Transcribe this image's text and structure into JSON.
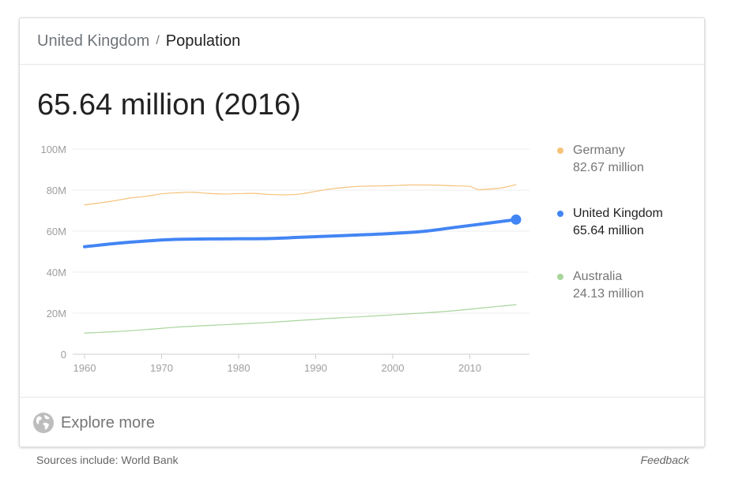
{
  "breadcrumb": {
    "parent": "United Kingdom",
    "separator": "/",
    "current": "Population"
  },
  "headline": "65.64 million (2016)",
  "legend": [
    {
      "name": "Germany",
      "value": "82.67 million",
      "color": "#f6c27a",
      "active": false
    },
    {
      "name": "United Kingdom",
      "value": "65.64 million",
      "color": "#4285f4",
      "active": true
    },
    {
      "name": "Australia",
      "value": "24.13 million",
      "color": "#a8d59b",
      "active": false
    }
  ],
  "explore": {
    "label": "Explore more",
    "icon": "globe-icon"
  },
  "footer": {
    "sources": "Sources include: World Bank",
    "feedback": "Feedback"
  },
  "chart_data": {
    "type": "line",
    "xlim": [
      1960,
      2016
    ],
    "ylim": [
      0,
      100
    ],
    "x_ticks": [
      1960,
      1970,
      1980,
      1990,
      2000,
      2010
    ],
    "x_tick_labels": [
      "1960",
      "1970",
      "1980",
      "1990",
      "2000",
      "2010"
    ],
    "y_ticks": [
      0,
      20,
      40,
      60,
      80,
      100
    ],
    "y_tick_labels": [
      "0",
      "20M",
      "40M",
      "60M",
      "80M",
      "100M"
    ],
    "grid": true,
    "series": [
      {
        "name": "Germany",
        "color": "#f6c27a",
        "width": 1.2,
        "x": [
          1960,
          1962,
          1964,
          1966,
          1968,
          1970,
          1972,
          1974,
          1976,
          1978,
          1980,
          1982,
          1984,
          1986,
          1988,
          1990,
          1992,
          1994,
          1996,
          1998,
          2000,
          2002,
          2004,
          2006,
          2008,
          2010,
          2011,
          2012,
          2014,
          2016
        ],
        "values": [
          72.8,
          73.8,
          74.9,
          76.2,
          77.0,
          78.2,
          78.7,
          79.0,
          78.4,
          78.1,
          78.3,
          78.4,
          77.9,
          77.7,
          78.1,
          79.4,
          80.6,
          81.4,
          81.9,
          82.0,
          82.2,
          82.5,
          82.5,
          82.4,
          82.1,
          81.8,
          80.3,
          80.4,
          81.0,
          82.67
        ]
      },
      {
        "name": "United Kingdom",
        "color": "#4285f4",
        "width": 4,
        "x": [
          1960,
          1964,
          1968,
          1972,
          1976,
          1980,
          1984,
          1988,
          1992,
          1996,
          2000,
          2004,
          2008,
          2012,
          2016
        ],
        "values": [
          52.4,
          54.0,
          55.2,
          56.0,
          56.2,
          56.3,
          56.4,
          57.0,
          57.6,
          58.2,
          58.9,
          59.9,
          61.8,
          63.7,
          65.64
        ]
      },
      {
        "name": "Australia",
        "color": "#a8d59b",
        "width": 1.2,
        "x": [
          1960,
          1964,
          1968,
          1972,
          1976,
          1980,
          1984,
          1988,
          1992,
          1996,
          2000,
          2004,
          2008,
          2012,
          2016
        ],
        "values": [
          10.3,
          11.0,
          12.0,
          13.2,
          14.0,
          14.7,
          15.5,
          16.5,
          17.5,
          18.3,
          19.2,
          20.1,
          21.2,
          22.7,
          24.13
        ]
      }
    ],
    "highlight_point": {
      "series": "United Kingdom",
      "x": 2016,
      "y": 65.64
    }
  }
}
